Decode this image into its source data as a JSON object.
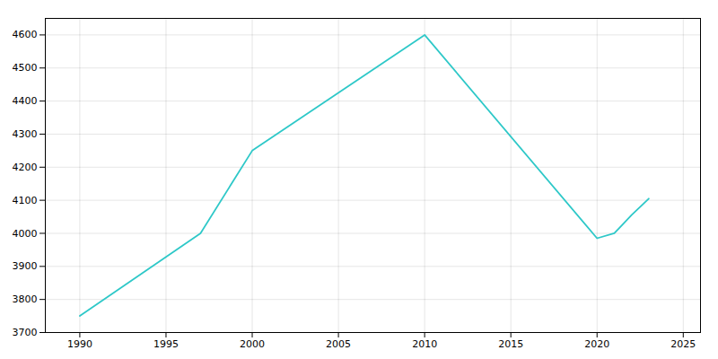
{
  "chart_data": {
    "type": "line",
    "x": [
      1990,
      1997,
      2000,
      2010,
      2020,
      2021,
      2022,
      2023
    ],
    "values": [
      3750,
      4000,
      4250,
      4600,
      3985,
      4000,
      4055,
      4105
    ],
    "color": "#2ec8c8",
    "xlim": [
      1988,
      2026
    ],
    "ylim": [
      3700,
      4650
    ],
    "xticks": [
      1990,
      1995,
      2000,
      2005,
      2010,
      2015,
      2020,
      2025
    ],
    "yticks": [
      3700,
      3800,
      3900,
      4000,
      4100,
      4200,
      4300,
      4400,
      4500,
      4600
    ],
    "grid": true
  }
}
